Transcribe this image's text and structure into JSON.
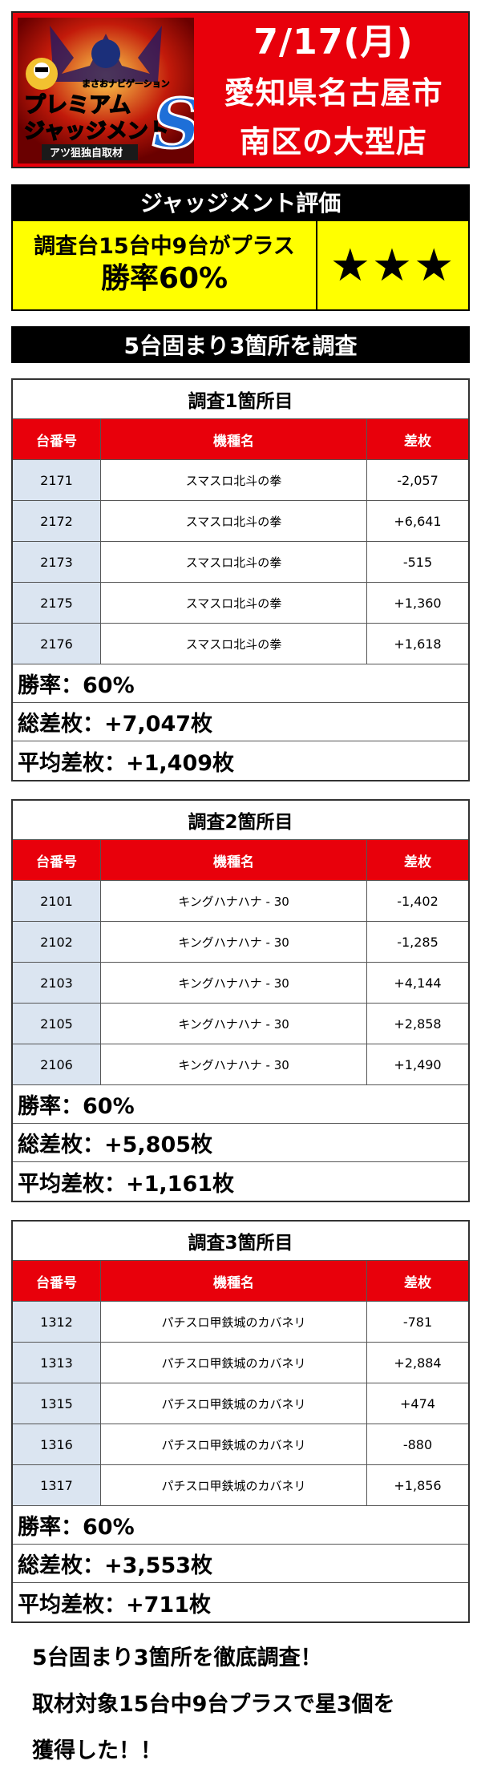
{
  "header": {
    "logo_text": {
      "small": "まさおナビゲーション",
      "line1": "プレミアム",
      "line2": "ジャッジメント",
      "letter": "S",
      "banner": "アツ狙独自取材"
    },
    "date": "7/17(月)",
    "location": "愛知県名古屋市",
    "store": "南区の大型店"
  },
  "judgment": {
    "title": "ジャッジメント評価",
    "summary": "調査台15台中9台がプラス",
    "win_rate": "勝率60%",
    "stars": "★★★"
  },
  "survey_title": "5台固まり3箇所を調査",
  "columns": {
    "unit": "台番号",
    "model": "機種名",
    "diff": "差枚"
  },
  "sections": [
    {
      "title": "調査1箇所目",
      "rows": [
        {
          "unit": "2171",
          "model": "スマスロ北斗の拳",
          "diff": "-2,057"
        },
        {
          "unit": "2172",
          "model": "スマスロ北斗の拳",
          "diff": "+6,641"
        },
        {
          "unit": "2173",
          "model": "スマスロ北斗の拳",
          "diff": "-515"
        },
        {
          "unit": "2175",
          "model": "スマスロ北斗の拳",
          "diff": "+1,360"
        },
        {
          "unit": "2176",
          "model": "スマスロ北斗の拳",
          "diff": "+1,618"
        }
      ],
      "win_rate": "勝率：60%",
      "total": "総差枚：+7,047枚",
      "average": "平均差枚：+1,409枚"
    },
    {
      "title": "調査2箇所目",
      "rows": [
        {
          "unit": "2101",
          "model": "キングハナハナ - 30",
          "diff": "-1,402"
        },
        {
          "unit": "2102",
          "model": "キングハナハナ - 30",
          "diff": "-1,285"
        },
        {
          "unit": "2103",
          "model": "キングハナハナ - 30",
          "diff": "+4,144"
        },
        {
          "unit": "2105",
          "model": "キングハナハナ - 30",
          "diff": "+2,858"
        },
        {
          "unit": "2106",
          "model": "キングハナハナ - 30",
          "diff": "+1,490"
        }
      ],
      "win_rate": "勝率：60%",
      "total": "総差枚：+5,805枚",
      "average": "平均差枚：+1,161枚"
    },
    {
      "title": "調査3箇所目",
      "rows": [
        {
          "unit": "1312",
          "model": "パチスロ甲鉄城のカバネリ",
          "diff": "-781"
        },
        {
          "unit": "1313",
          "model": "パチスロ甲鉄城のカバネリ",
          "diff": "+2,884"
        },
        {
          "unit": "1315",
          "model": "パチスロ甲鉄城のカバネリ",
          "diff": "+474"
        },
        {
          "unit": "1316",
          "model": "パチスロ甲鉄城のカバネリ",
          "diff": "-880"
        },
        {
          "unit": "1317",
          "model": "パチスロ甲鉄城のカバネリ",
          "diff": "+1,856"
        }
      ],
      "win_rate": "勝率：60%",
      "total": "総差枚：+3,553枚",
      "average": "平均差枚：+711枚"
    }
  ],
  "closing": [
    "5台固まり3箇所を徹底調査！",
    "取材対象15台中9台プラスで星3個を",
    "獲得した！！"
  ],
  "colors": {
    "red": "#e8000b",
    "yellow": "#ffff00",
    "black": "#000000",
    "unit_cell": "#dbe5f1"
  }
}
